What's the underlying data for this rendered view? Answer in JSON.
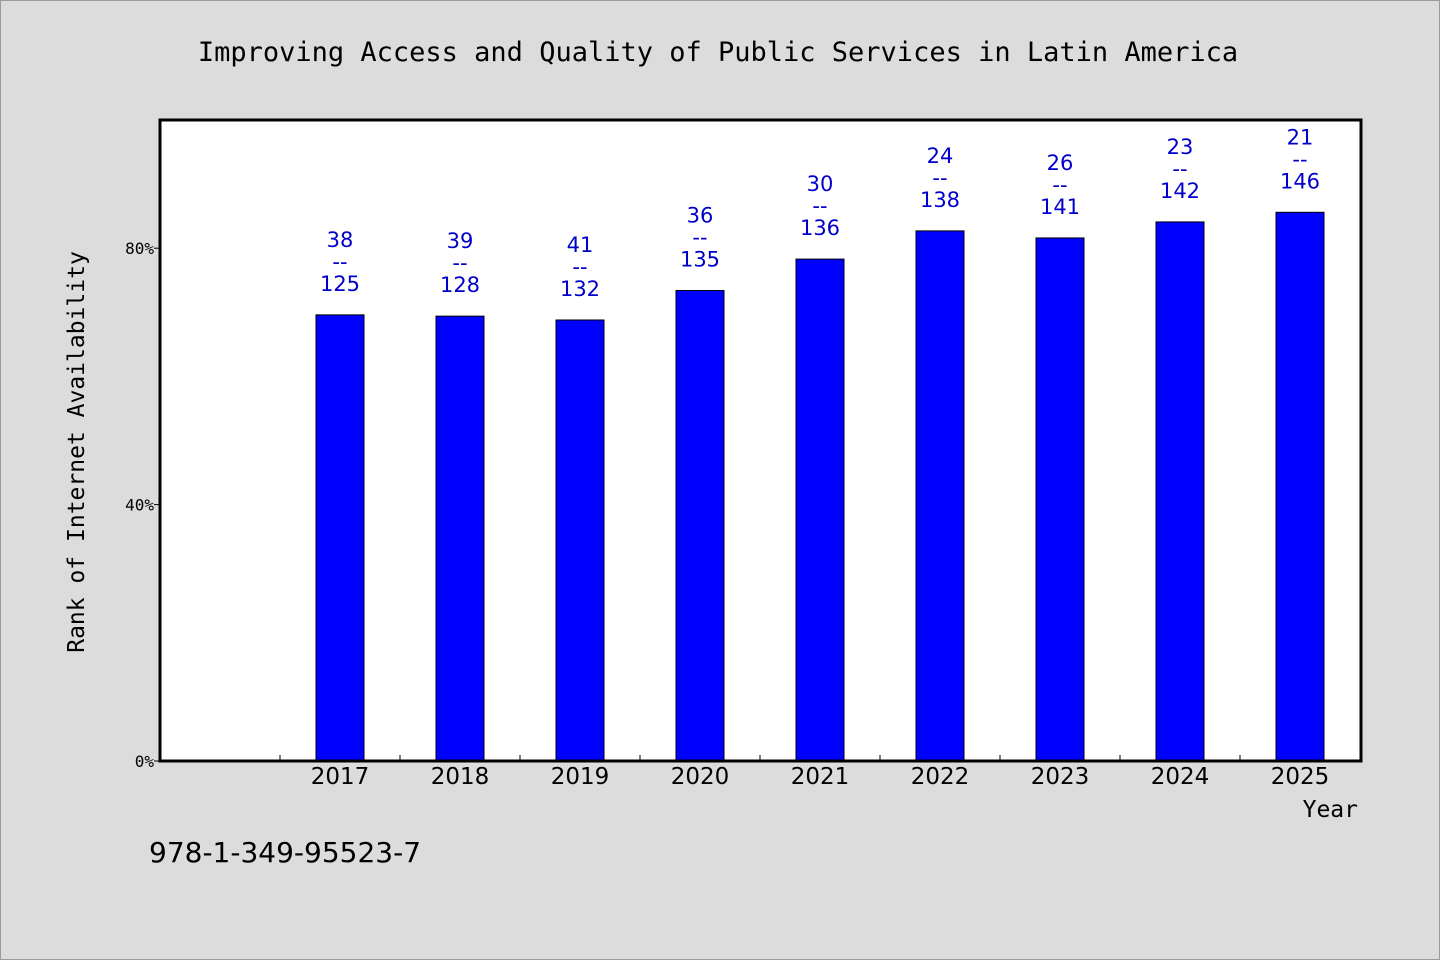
{
  "chart_data": {
    "type": "bar",
    "title": "Improving Access and Quality of Public Services in Latin America",
    "xlabel": "Year",
    "ylabel": "Rank of Internet Availability",
    "categories": [
      "2017",
      "2018",
      "2019",
      "2020",
      "2021",
      "2022",
      "2023",
      "2024",
      "2025"
    ],
    "values": [
      69.6,
      69.4,
      68.8,
      73.4,
      78.3,
      82.7,
      81.6,
      84.1,
      85.6
    ],
    "bar_labels": [
      "38\n--\n125",
      "39\n--\n128",
      "41\n--\n132",
      "36\n--\n135",
      "30\n--\n136",
      "24\n--\n138",
      "26\n--\n141",
      "23\n--\n142",
      "21\n--\n146"
    ],
    "ylim": [
      0,
      100
    ],
    "yticks": [
      0,
      40,
      80
    ],
    "ytick_labels": [
      "0%",
      "40%",
      "80%"
    ],
    "grid": false,
    "legend": "none",
    "bar_color": "#0000ff",
    "label_color": "#0000cc",
    "plot_background": "#ffffff",
    "page_background": "#dcdcdc"
  },
  "footer": {
    "isbn": "978-1-349-95523-7"
  }
}
